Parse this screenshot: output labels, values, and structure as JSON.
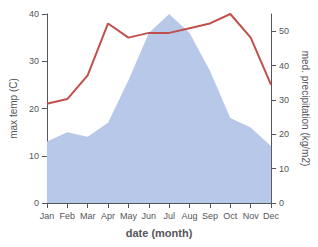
{
  "chart_data": {
    "type": "line",
    "xlabel": "date (month)",
    "ylabel": "max temp (C)",
    "y2label": "med. precipitation (kg/m2)",
    "categories": [
      "Jan",
      "Feb",
      "Mar",
      "Apr",
      "May",
      "Jun",
      "Jul",
      "Aug",
      "Sep",
      "Oct",
      "Nov",
      "Dec"
    ],
    "series": [
      {
        "type": "area",
        "color": "#b8c8e8",
        "values": [
          13,
          15,
          14,
          17,
          26,
          36,
          40,
          36,
          28,
          18,
          16,
          12
        ]
      },
      {
        "type": "line",
        "color": "#c0504d",
        "values": [
          21,
          22,
          27,
          38,
          35,
          36,
          36,
          37,
          38,
          40,
          35,
          25
        ]
      }
    ],
    "ylim": [
      0,
      40
    ],
    "yticks": [
      0,
      10,
      20,
      30,
      40
    ],
    "y2lim": [
      0,
      55
    ],
    "y2ticks": [
      0,
      10,
      20,
      30,
      40,
      50
    ],
    "grid": false
  }
}
